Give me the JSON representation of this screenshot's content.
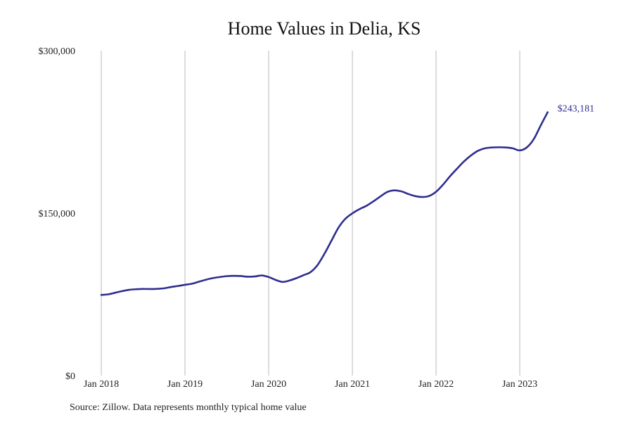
{
  "chart_data": {
    "type": "line",
    "title": "Home Values in Delia, KS",
    "xlabel": "",
    "ylabel": "",
    "y_ticks": [
      "$0",
      "$150,000",
      "$300,000"
    ],
    "y_tick_values": [
      0,
      150000,
      300000
    ],
    "ylim": [
      0,
      300000
    ],
    "x_ticks": [
      "Jan 2018",
      "Jan 2019",
      "Jan 2020",
      "Jan 2021",
      "Jan 2022",
      "Jan 2023"
    ],
    "x_tick_dates": [
      "2018-01",
      "2019-01",
      "2020-01",
      "2021-01",
      "2022-01",
      "2023-01"
    ],
    "xlim": [
      "2018-01",
      "2023-12"
    ],
    "grid": "vertical",
    "line_color": "#2E2E8F",
    "end_label": "$243,181",
    "series": [
      {
        "x": [
          "2018-01",
          "2018-02",
          "2018-03",
          "2018-04",
          "2018-05",
          "2018-06",
          "2018-07",
          "2018-08",
          "2018-09",
          "2018-10",
          "2018-11",
          "2018-12",
          "2019-01",
          "2019-02",
          "2019-03",
          "2019-04",
          "2019-05",
          "2019-06",
          "2019-07",
          "2019-08",
          "2019-09",
          "2019-10",
          "2019-11",
          "2019-12",
          "2020-01",
          "2020-02",
          "2020-03",
          "2020-04",
          "2020-05",
          "2020-06",
          "2020-07",
          "2020-08",
          "2020-09",
          "2020-10",
          "2020-11",
          "2020-12",
          "2021-01",
          "2021-02",
          "2021-03",
          "2021-04",
          "2021-05",
          "2021-06",
          "2021-07",
          "2021-08",
          "2021-09",
          "2021-10",
          "2021-11",
          "2021-12",
          "2022-01",
          "2022-02",
          "2022-03",
          "2022-04",
          "2022-05",
          "2022-06",
          "2022-07",
          "2022-08",
          "2022-09",
          "2022-10",
          "2022-11",
          "2022-12",
          "2023-01",
          "2023-02",
          "2023-03",
          "2023-04",
          "2023-05"
        ],
        "values": [
          74500,
          75000,
          76500,
          78000,
          79200,
          79700,
          80000,
          79900,
          80100,
          80600,
          81800,
          82700,
          83800,
          84800,
          86700,
          88500,
          90000,
          91000,
          91800,
          92100,
          91900,
          91300,
          91500,
          92400,
          91000,
          88300,
          86500,
          87800,
          90000,
          92700,
          95500,
          102000,
          112500,
          124500,
          136500,
          144800,
          149800,
          153600,
          156700,
          160800,
          165300,
          169500,
          171000,
          170100,
          167700,
          165700,
          164900,
          165800,
          169700,
          176300,
          184000,
          191000,
          197700,
          203200,
          207500,
          209800,
          210600,
          210800,
          210600,
          209800,
          207900,
          210600,
          218200,
          230900,
          243181
        ]
      }
    ]
  },
  "footer": {
    "source": "Source: Zillow. Data represents monthly typical home value"
  }
}
